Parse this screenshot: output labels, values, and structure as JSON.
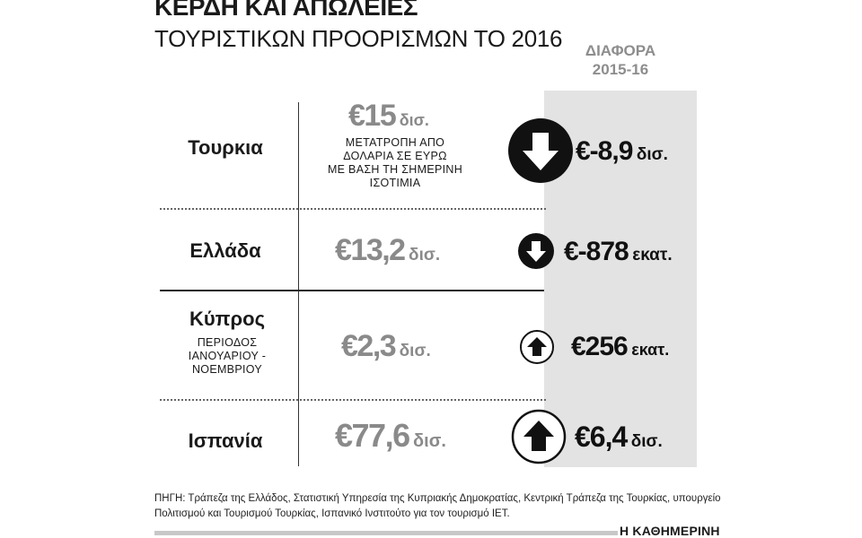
{
  "title": "ΚΕΡΔΗ ΚΑΙ ΑΠΩΛΕΙΕΣ",
  "subtitle": "ΤΟΥΡΙΣΤΙΚΩΝ ΠΡΟΟΡΙΣΜΩΝ ΤΟ 2016",
  "diff_header": {
    "line1": "ΔΙΑΦΟΡΑ",
    "line2": "2015-16"
  },
  "colors": {
    "value_gray": "#8a8a8a",
    "band_gray": "#e3e3e3",
    "text": "#111111"
  },
  "rows": [
    {
      "country": "Τουρκια",
      "country_note": "",
      "value_text": "€15",
      "value_unit": "δισ.",
      "value_note": [
        "ΜΕΤΑΤΡΟΠΗ ΑΠΟ",
        "ΔΟΛΑΡΙΑ ΣΕ ΕΥΡΩ",
        "ΜΕ ΒΑΣΗ ΤΗ ΣΗΜΕΡΙΝΗ",
        "ΙΣΟΤΙΜΙΑ"
      ],
      "diff_text": "€-8,9",
      "diff_unit": "δισ.",
      "direction": "down",
      "icon": "arrow-down-circle-icon"
    },
    {
      "country": "Ελλάδα",
      "country_note": "",
      "value_text": "€13,2",
      "value_unit": "δισ.",
      "value_note": [],
      "diff_text": "€-878",
      "diff_unit": "εκατ.",
      "direction": "down",
      "icon": "arrow-down-circle-icon"
    },
    {
      "country": "Κύπρος",
      "country_note": [
        "ΠΕΡΙΟΔΟΣ",
        "ΙΑΝΟΥΑΡΙΟΥ -",
        "ΝΟΕΜΒΡΙΟΥ"
      ],
      "value_text": "€2,3",
      "value_unit": "δισ.",
      "value_note": [],
      "diff_text": "€256",
      "diff_unit": "εκατ.",
      "direction": "up",
      "icon": "arrow-up-circle-icon"
    },
    {
      "country": "Ισπανία",
      "country_note": "",
      "value_text": "€77,6",
      "value_unit": "δισ.",
      "value_note": [],
      "diff_text": "€6,4",
      "diff_unit": "δισ.",
      "direction": "up",
      "icon": "arrow-up-circle-icon"
    }
  ],
  "chart_data": {
    "type": "table",
    "title": "ΚΕΡΔΗ ΚΑΙ ΑΠΩΛΕΙΕΣ",
    "subtitle": "ΤΟΥΡΙΣΤΙΚΩΝ ΠΡΟΟΡΙΣΜΩΝ ΤΟ 2016",
    "columns": [
      "",
      "",
      "ΔΙΑΦΟΡΑ 2015-16"
    ],
    "categories": [
      "Τουρκια",
      "Ελλάδα",
      "Κύπρος",
      "Ισπανία"
    ],
    "series": [
      {
        "name": "",
        "values": [
          15,
          13.2,
          2.3,
          77.6
        ],
        "units": [
          "δισ.",
          "δισ.",
          "δισ.",
          "δισ."
        ]
      },
      {
        "name": "ΔΙΑΦΟΡΑ 2015-16",
        "values": [
          -8.9,
          -878,
          256,
          6.4
        ],
        "units": [
          "δισ.",
          "εκατ.",
          "εκατ.",
          "δισ."
        ]
      }
    ]
  },
  "source": "ΠΗΓΗ: Τράπεζα της Ελλάδος, Στατιστική Υπηρεσία της Κυπριακής Δημοκρατίας, Κεντρική Τράπεζα της Τουρκίας, υπουργείο Πολιτισμού και Τουρισμού Τουρκίας, Ισπανικό Ινστιτούτο για τον τουρισμό ΙΕΤ.",
  "brand": "Η ΚΑΘΗΜΕΡΙΝΗ"
}
